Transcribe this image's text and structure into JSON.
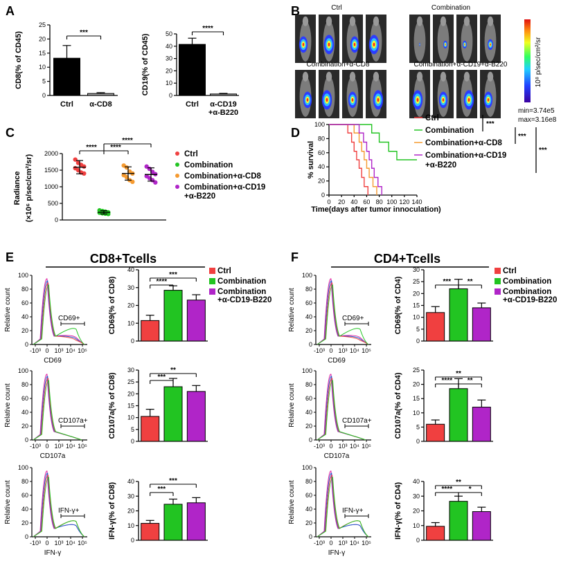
{
  "panels": {
    "A": "A",
    "B": "B",
    "C": "C",
    "D": "D",
    "E": "E",
    "F": "F"
  },
  "colors": {
    "ctrl": "#f04040",
    "combination": "#22c422",
    "combo_cd8": "#f59a30",
    "combo_cd19": "#b025c8",
    "black": "#000000",
    "grey": "#a0a0a0"
  },
  "panelB": {
    "groups": [
      "Ctrl",
      "Combination",
      "Combination+α-CD8",
      "Combination+α-CD19+α-B220"
    ],
    "colorbar_unit": "10⁸ p/sec/cm²/sr",
    "min_label": "min=3.74e5",
    "max_label": "max=3.16e8"
  },
  "panelE_title": "CD8+Tcells",
  "panelF_title": "CD4+Tcells",
  "flow": {
    "ylabel": "Relative count",
    "xticks": [
      "-10³",
      "0",
      "10³",
      "10⁴",
      "10⁵"
    ],
    "row_markers": [
      "CD69",
      "CD107a",
      "IFN-γ"
    ],
    "gates": [
      "CD69+",
      "CD107a+",
      "IFN-γ+"
    ],
    "yticks": [
      "0",
      "20",
      "40",
      "60",
      "80",
      "100"
    ]
  },
  "chart_data": [
    {
      "id": "A1",
      "type": "bar",
      "title": "",
      "ylabel": "CD8(% of CD45)",
      "categories": [
        "Ctrl",
        "α-CD8"
      ],
      "values": [
        13.2,
        0.7
      ],
      "errors": [
        4.5,
        0.3
      ],
      "ylim": [
        0,
        25
      ],
      "yticks": [
        "0",
        "5",
        "10",
        "15",
        "20",
        "25"
      ],
      "bar_colors": [
        "#000000",
        "#a0a0a0"
      ],
      "significance": [
        {
          "pair": [
            0,
            1
          ],
          "label": "***"
        }
      ]
    },
    {
      "id": "A2",
      "type": "bar",
      "title": "",
      "ylabel": "CD19(% of CD45)",
      "categories": [
        "Ctrl",
        "α-CD19\n+α-B220"
      ],
      "values": [
        41.5,
        1.2
      ],
      "errors": [
        5.0,
        0.5
      ],
      "ylim": [
        0,
        50
      ],
      "yticks": [
        "0",
        "10",
        "20",
        "30",
        "40",
        "50"
      ],
      "bar_colors": [
        "#000000",
        "#a0a0a0"
      ],
      "significance": [
        {
          "pair": [
            0,
            1
          ],
          "label": "****"
        }
      ]
    },
    {
      "id": "C",
      "type": "scatter",
      "ylabel": "Radiance",
      "ylabel2": "(×10⁶ p/sec/cm²/sr)",
      "ylim": [
        0,
        2000
      ],
      "yticks": [
        "0",
        "500",
        "1000",
        "1500",
        "2000"
      ],
      "series": [
        {
          "name": "Ctrl",
          "mean": 1590,
          "sd": 200,
          "points": [
            1820,
            1720,
            1660,
            1610,
            1560,
            1500,
            1430,
            1400
          ]
        },
        {
          "name": "Combination",
          "mean": 230,
          "sd": 50,
          "points": [
            290,
            270,
            250,
            230,
            220,
            200,
            190,
            180
          ]
        },
        {
          "name": "Combination+α-CD8",
          "mean": 1400,
          "sd": 200,
          "points": [
            1640,
            1580,
            1460,
            1400,
            1350,
            1290,
            1200,
            1150
          ]
        },
        {
          "name": "Combination+α-CD19\n+α-B220",
          "mean": 1370,
          "sd": 200,
          "points": [
            1610,
            1540,
            1450,
            1380,
            1320,
            1260,
            1200,
            1130
          ]
        }
      ],
      "significance": [
        {
          "label": "****",
          "pair": [
            0,
            1
          ]
        },
        {
          "label": "****",
          "pair": [
            1,
            2
          ]
        },
        {
          "label": "****",
          "pair": [
            1,
            3
          ]
        }
      ]
    },
    {
      "id": "D",
      "type": "line",
      "ylabel": "% survival",
      "xlabel": "Time(days after tumor innoculation)",
      "xlim": [
        0,
        140
      ],
      "ylim": [
        0,
        100
      ],
      "xticks": [
        "0",
        "20",
        "40",
        "60",
        "80",
        "100",
        "120",
        "140"
      ],
      "yticks": [
        "0",
        "20",
        "40",
        "60",
        "80",
        "100"
      ],
      "series": [
        {
          "name": "Ctrl",
          "points": [
            [
              0,
              100
            ],
            [
              30,
              100
            ],
            [
              30,
              88
            ],
            [
              36,
              88
            ],
            [
              36,
              75
            ],
            [
              40,
              75
            ],
            [
              40,
              62
            ],
            [
              44,
              62
            ],
            [
              44,
              50
            ],
            [
              48,
              50
            ],
            [
              48,
              38
            ],
            [
              52,
              38
            ],
            [
              52,
              25
            ],
            [
              56,
              25
            ],
            [
              56,
              12
            ],
            [
              62,
              12
            ],
            [
              62,
              0
            ]
          ]
        },
        {
          "name": "Combination",
          "points": [
            [
              0,
              100
            ],
            [
              68,
              100
            ],
            [
              68,
              88
            ],
            [
              80,
              88
            ],
            [
              80,
              75
            ],
            [
              95,
              75
            ],
            [
              95,
              62
            ],
            [
              108,
              62
            ],
            [
              108,
              50
            ],
            [
              140,
              50
            ]
          ]
        },
        {
          "name": "Combination+α-CD8",
          "points": [
            [
              0,
              100
            ],
            [
              40,
              100
            ],
            [
              40,
              88
            ],
            [
              48,
              88
            ],
            [
              48,
              75
            ],
            [
              52,
              75
            ],
            [
              52,
              62
            ],
            [
              56,
              62
            ],
            [
              56,
              50
            ],
            [
              60,
              50
            ],
            [
              60,
              38
            ],
            [
              64,
              38
            ],
            [
              64,
              25
            ],
            [
              70,
              25
            ],
            [
              70,
              12
            ],
            [
              76,
              12
            ],
            [
              76,
              0
            ]
          ]
        },
        {
          "name": "Combination+α-CD19\n+α-B220",
          "points": [
            [
              0,
              100
            ],
            [
              48,
              100
            ],
            [
              48,
              88
            ],
            [
              55,
              88
            ],
            [
              55,
              75
            ],
            [
              60,
              75
            ],
            [
              60,
              62
            ],
            [
              64,
              62
            ],
            [
              64,
              50
            ],
            [
              68,
              50
            ],
            [
              68,
              38
            ],
            [
              72,
              38
            ],
            [
              72,
              25
            ],
            [
              78,
              25
            ],
            [
              78,
              12
            ],
            [
              84,
              12
            ],
            [
              84,
              0
            ]
          ]
        }
      ],
      "significance": [
        "***",
        "***",
        "***"
      ]
    },
    {
      "id": "E1",
      "type": "bar",
      "ylabel": "CD69(% of CD8)",
      "ylim": [
        0,
        40
      ],
      "yticks": [
        "0",
        "10",
        "20",
        "30",
        "40"
      ],
      "values": [
        11.5,
        28.5,
        23
      ],
      "errors": [
        3,
        2.5,
        3
      ],
      "significance": [
        {
          "pair": [
            0,
            1
          ],
          "label": "****"
        },
        {
          "pair": [
            0,
            2
          ],
          "label": "***"
        }
      ]
    },
    {
      "id": "E2",
      "type": "bar",
      "ylabel": "CD107a(% of CD8)",
      "ylim": [
        0,
        30
      ],
      "yticks": [
        "0",
        "5",
        "10",
        "15",
        "20",
        "25",
        "30"
      ],
      "values": [
        10.5,
        23,
        21
      ],
      "errors": [
        3,
        3.5,
        2.5
      ],
      "significance": [
        {
          "pair": [
            0,
            1
          ],
          "label": "***"
        },
        {
          "pair": [
            0,
            2
          ],
          "label": "**"
        }
      ]
    },
    {
      "id": "E3",
      "type": "bar",
      "ylabel": "IFN-γ(% of CD8)",
      "ylim": [
        0,
        40
      ],
      "yticks": [
        "0",
        "10",
        "20",
        "30",
        "40"
      ],
      "values": [
        11.5,
        24.5,
        25.5
      ],
      "errors": [
        2,
        3.5,
        3.5
      ],
      "significance": [
        {
          "pair": [
            0,
            1
          ],
          "label": "***"
        },
        {
          "pair": [
            0,
            2
          ],
          "label": "***"
        }
      ]
    },
    {
      "id": "F1",
      "type": "bar",
      "ylabel": "CD69(% of CD4)",
      "ylim": [
        0,
        30
      ],
      "yticks": [
        "0",
        "5",
        "10",
        "15",
        "20",
        "25",
        "30"
      ],
      "values": [
        12,
        22,
        14
      ],
      "errors": [
        2.5,
        4,
        2
      ],
      "significance": [
        {
          "pair": [
            0,
            1
          ],
          "label": "***"
        },
        {
          "pair": [
            1,
            2
          ],
          "label": "**"
        }
      ]
    },
    {
      "id": "F2",
      "type": "bar",
      "ylabel": "CD107a(% of CD4)",
      "ylim": [
        0,
        25
      ],
      "yticks": [
        "0",
        "5",
        "10",
        "15",
        "20",
        "25"
      ],
      "values": [
        6,
        18.5,
        12
      ],
      "errors": [
        1.5,
        3.5,
        2.5
      ],
      "significance": [
        {
          "pair": [
            0,
            1
          ],
          "label": "****"
        },
        {
          "pair": [
            1,
            2
          ],
          "label": "**"
        },
        {
          "pair": [
            0,
            2
          ],
          "label": "**"
        }
      ]
    },
    {
      "id": "F3",
      "type": "bar",
      "ylabel": "IFN-γ(% of CD4)",
      "ylim": [
        0,
        40
      ],
      "yticks": [
        "0",
        "10",
        "20",
        "30",
        "40"
      ],
      "values": [
        9.5,
        26.5,
        19.5
      ],
      "errors": [
        2.5,
        3.5,
        3
      ],
      "significance": [
        {
          "pair": [
            0,
            1
          ],
          "label": "****"
        },
        {
          "pair": [
            1,
            2
          ],
          "label": "*"
        },
        {
          "pair": [
            0,
            2
          ],
          "label": "**"
        }
      ]
    }
  ],
  "legend_EF": [
    "Ctrl",
    "Combination",
    "Combination\n+α-CD19-B220"
  ]
}
